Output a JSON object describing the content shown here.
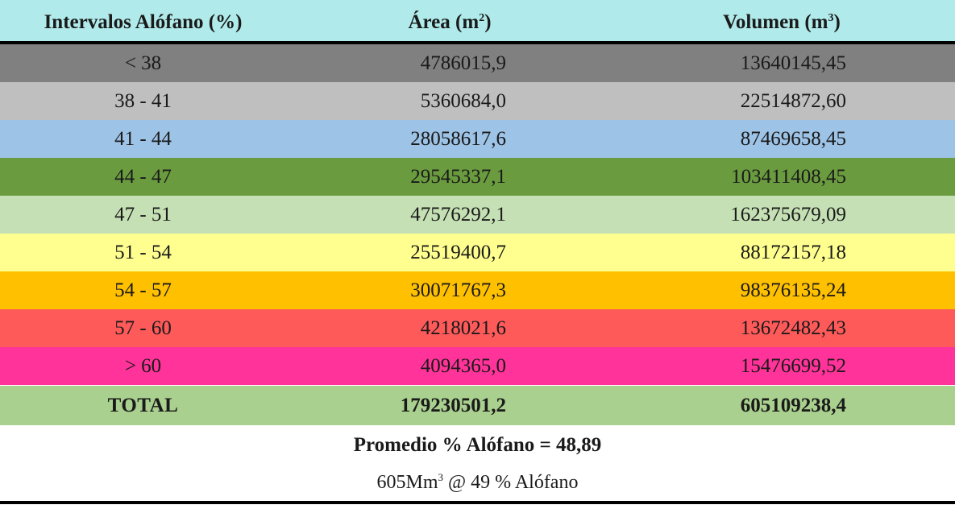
{
  "table": {
    "headers": {
      "intervals": "Intervalos Alófano (%)",
      "area_label": "Área (m",
      "area_unit_exp": "2",
      "area_close": ")",
      "volume_label": "Volumen (m",
      "volume_unit_exp": "3",
      "volume_close": ")"
    },
    "rows": [
      {
        "interval": "< 38",
        "area": "4786015,9",
        "volume": "13640145,45",
        "color": "#808080"
      },
      {
        "interval": "38 - 41",
        "area": "5360684,0",
        "volume": "22514872,60",
        "color": "#bfbfbf"
      },
      {
        "interval": "41 - 44",
        "area": "28058617,6",
        "volume": "87469658,45",
        "color": "#9dc3e6"
      },
      {
        "interval": "44 - 47",
        "area": "29545337,1",
        "volume": "103411408,45",
        "color": "#6a9c3f"
      },
      {
        "interval": "47 - 51",
        "area": "47576292,1",
        "volume": "162375679,09",
        "color": "#c5e0b4"
      },
      {
        "interval": "51 - 54",
        "area": "25519400,7",
        "volume": "88172157,18",
        "color": "#ffff8f"
      },
      {
        "interval": "54 - 57",
        "area": "30071767,3",
        "volume": "98376135,24",
        "color": "#ffc000"
      },
      {
        "interval": "57 - 60",
        "area": "4218021,6",
        "volume": "13672482,43",
        "color": "#ff5a5a"
      },
      {
        "interval": "> 60",
        "area": "4094365,0",
        "volume": "15476699,52",
        "color": "#ff3399"
      }
    ],
    "total": {
      "label": "TOTAL",
      "area": "179230501,2",
      "volume": "605109238,4",
      "color": "#a9d08e"
    },
    "header_color": "#b0eaea"
  },
  "summary": {
    "average": "Promedio % Alófano = 48,89",
    "volume_prefix": "605Mm",
    "volume_exp": "3",
    "volume_suffix": " @ 49 % Alófano"
  }
}
